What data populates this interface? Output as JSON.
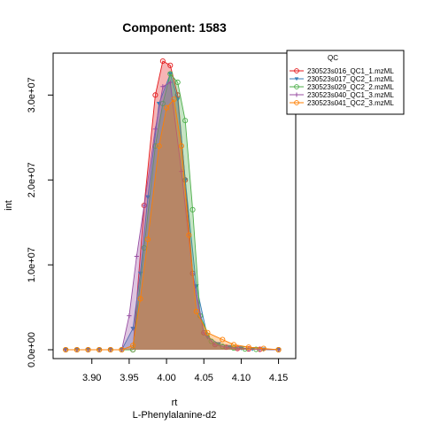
{
  "chart_data": {
    "type": "area",
    "title": "Component: 1583",
    "xlabel": "rt",
    "subtitle": "L-Phenylalanine-d2",
    "ylabel": "int",
    "xlim": [
      3.86,
      4.16
    ],
    "ylim": [
      0,
      34000000
    ],
    "x_ticks": [
      3.9,
      3.95,
      4.0,
      4.05,
      4.1,
      4.15
    ],
    "x_tick_labels": [
      "3.90",
      "3.95",
      "4.00",
      "4.05",
      "4.10",
      "4.15"
    ],
    "y_ticks": [
      0,
      10000000,
      20000000,
      30000000
    ],
    "y_tick_labels": [
      "0.0e+00",
      "1.0e+07",
      "2.0e+07",
      "3.0e+07"
    ],
    "legend": {
      "title": "QC",
      "placement": "top-right, outside plot"
    },
    "series": [
      {
        "name": "230523s016_QC1_1.mzML",
        "color": "#e41a1c",
        "fill": "#e41a1c",
        "marker": "circle",
        "x": [
          3.865,
          3.88,
          3.895,
          3.91,
          3.925,
          3.94,
          3.955,
          3.97,
          3.985,
          3.995,
          4.005,
          4.015,
          4.025,
          4.035,
          4.05,
          4.065,
          4.08,
          4.095,
          4.11,
          4.125,
          4.15
        ],
        "y": [
          0,
          0,
          0,
          0,
          0,
          0,
          0,
          17000000,
          30000000,
          34000000,
          33500000,
          30000000,
          20000000,
          9000000,
          2000000,
          600000,
          300000,
          150000,
          100000,
          50000,
          0
        ]
      },
      {
        "name": "230523s017_QC2_1.mzML",
        "color": "#377eb8",
        "fill": "#377eb8",
        "marker": "triangle-down",
        "x": [
          3.865,
          3.88,
          3.895,
          3.91,
          3.925,
          3.94,
          3.955,
          3.965,
          3.975,
          3.99,
          4.005,
          4.015,
          4.025,
          4.04,
          4.055,
          4.07,
          4.085,
          4.1,
          4.115,
          4.13,
          4.15
        ],
        "y": [
          0,
          0,
          0,
          0,
          0,
          0,
          2500000,
          9000000,
          18000000,
          29000000,
          32500000,
          29500000,
          20000000,
          7500000,
          1500000,
          700000,
          350000,
          200000,
          120000,
          60000,
          0
        ]
      },
      {
        "name": "230523s029_QC2_2.mzML",
        "color": "#4daf4a",
        "fill": "#4daf4a",
        "marker": "circle",
        "x": [
          3.865,
          3.88,
          3.895,
          3.91,
          3.925,
          3.94,
          3.955,
          3.97,
          3.985,
          3.995,
          4.005,
          4.015,
          4.025,
          4.035,
          4.045,
          4.06,
          4.075,
          4.09,
          4.105,
          4.12,
          4.15
        ],
        "y": [
          0,
          0,
          0,
          0,
          0,
          0,
          0,
          12000000,
          24000000,
          29000000,
          32500000,
          31500000,
          27000000,
          16500000,
          4000000,
          1000000,
          400000,
          200000,
          100000,
          50000,
          0
        ]
      },
      {
        "name": "230523s040_QC1_3.mzML",
        "color": "#984ea3",
        "fill": "#984ea3",
        "marker": "plus",
        "x": [
          3.865,
          3.88,
          3.895,
          3.91,
          3.925,
          3.94,
          3.95,
          3.96,
          3.97,
          3.985,
          3.995,
          4.005,
          4.02,
          4.035,
          4.05,
          4.065,
          4.08,
          4.095,
          4.11,
          4.125,
          4.15
        ],
        "y": [
          0,
          0,
          0,
          0,
          0,
          0,
          4000000,
          11000000,
          17000000,
          26000000,
          31000000,
          31500000,
          21000000,
          9000000,
          2000000,
          600000,
          300000,
          150000,
          80000,
          40000,
          0
        ]
      },
      {
        "name": "230523s041_QC2_3.mzML",
        "color": "#ff7f00",
        "fill": "#ff7f00",
        "marker": "circle",
        "x": [
          3.865,
          3.88,
          3.895,
          3.91,
          3.925,
          3.94,
          3.955,
          3.965,
          3.975,
          3.99,
          4.0,
          4.01,
          4.02,
          4.03,
          4.04,
          4.055,
          4.075,
          4.09,
          4.11,
          4.13,
          4.15
        ],
        "y": [
          0,
          0,
          0,
          0,
          0,
          0,
          500000,
          6000000,
          13000000,
          24000000,
          28500000,
          29500000,
          24000000,
          13500000,
          4500000,
          2000000,
          1200000,
          600000,
          300000,
          150000,
          0
        ]
      }
    ]
  }
}
